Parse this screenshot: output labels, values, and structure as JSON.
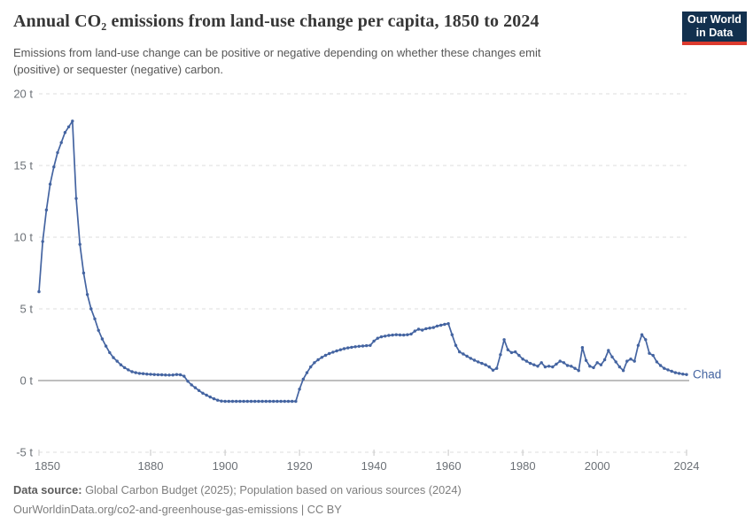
{
  "header": {
    "title": "Annual CO₂ emissions from land-use change per capita, 1850 to 2024",
    "subtitle": {
      "line1": "Emissions from land-use change can be positive or negative depending on whether these changes emit",
      "line2": "(positive) or sequester (negative) carbon."
    },
    "logo": {
      "line1": "Our World",
      "line2": "in Data"
    }
  },
  "footer": {
    "datasource_label": "Data source:",
    "datasource_text": " Global Carbon Budget (2025); Population based on various sources (2024)",
    "url_line": "OurWorldinData.org/co2-and-greenhouse-gas-emissions | CC BY"
  },
  "colors": {
    "line": "#4464a1",
    "title": "#373737",
    "subtitle": "#565656",
    "axis_text": "#6b7076",
    "grid": "#dcdcdc",
    "zero_line": "#a8a8a8",
    "tick": "#c6c6c6",
    "logo_bg": "#12304e",
    "logo_red": "#dc3a2e",
    "footer": "#7e7e7e"
  },
  "chart_data": {
    "type": "line",
    "title": "Annual CO₂ emissions from land-use change per capita, 1850 to 2024",
    "unit": "t",
    "xlim": [
      1850,
      2024
    ],
    "ylim": [
      -5,
      20
    ],
    "grid": "horizontal-dashed",
    "zero_line": true,
    "legend_position": "end-of-line",
    "end_label": "Chad",
    "x_ticks": [
      {
        "value": 1850,
        "label": "1850"
      },
      {
        "value": 1880,
        "label": "1880"
      },
      {
        "value": 1900,
        "label": "1900"
      },
      {
        "value": 1920,
        "label": "1920"
      },
      {
        "value": 1940,
        "label": "1940"
      },
      {
        "value": 1960,
        "label": "1960"
      },
      {
        "value": 1980,
        "label": "1980"
      },
      {
        "value": 2000,
        "label": "2000"
      },
      {
        "value": 2024,
        "label": "2024"
      }
    ],
    "y_ticks": [
      {
        "value": 20,
        "label": "20 t"
      },
      {
        "value": 15,
        "label": "15 t"
      },
      {
        "value": 10,
        "label": "10 t"
      },
      {
        "value": 5,
        "label": "5 t"
      },
      {
        "value": 0,
        "label": "0 t"
      },
      {
        "value": -5,
        "label": "-5 t"
      }
    ],
    "series": [
      {
        "name": "Chad",
        "color": "#4464a1",
        "x": [
          1850,
          1851,
          1852,
          1853,
          1854,
          1855,
          1856,
          1857,
          1858,
          1859,
          1860,
          1861,
          1862,
          1863,
          1864,
          1865,
          1866,
          1867,
          1868,
          1869,
          1870,
          1871,
          1872,
          1873,
          1874,
          1875,
          1876,
          1877,
          1878,
          1879,
          1880,
          1881,
          1882,
          1883,
          1884,
          1885,
          1886,
          1887,
          1888,
          1889,
          1890,
          1891,
          1892,
          1893,
          1894,
          1895,
          1896,
          1897,
          1898,
          1899,
          1900,
          1901,
          1902,
          1903,
          1904,
          1905,
          1906,
          1907,
          1908,
          1909,
          1910,
          1911,
          1912,
          1913,
          1914,
          1915,
          1916,
          1917,
          1918,
          1919,
          1920,
          1921,
          1922,
          1923,
          1924,
          1925,
          1926,
          1927,
          1928,
          1929,
          1930,
          1931,
          1932,
          1933,
          1934,
          1935,
          1936,
          1937,
          1938,
          1939,
          1940,
          1941,
          1942,
          1943,
          1944,
          1945,
          1946,
          1947,
          1948,
          1949,
          1950,
          1951,
          1952,
          1953,
          1954,
          1955,
          1956,
          1957,
          1958,
          1959,
          1960,
          1961,
          1962,
          1963,
          1964,
          1965,
          1966,
          1967,
          1968,
          1969,
          1970,
          1971,
          1972,
          1973,
          1974,
          1975,
          1976,
          1977,
          1978,
          1979,
          1980,
          1981,
          1982,
          1983,
          1984,
          1985,
          1986,
          1987,
          1988,
          1989,
          1990,
          1991,
          1992,
          1993,
          1994,
          1995,
          1996,
          1997,
          1998,
          1999,
          2000,
          2001,
          2002,
          2003,
          2004,
          2005,
          2006,
          2007,
          2008,
          2009,
          2010,
          2011,
          2012,
          2013,
          2014,
          2015,
          2016,
          2017,
          2018,
          2019,
          2020,
          2021,
          2022,
          2023,
          2024
        ],
        "values": [
          6.2,
          9.7,
          11.9,
          13.7,
          14.9,
          15.9,
          16.6,
          17.3,
          17.7,
          18.1,
          12.7,
          9.5,
          7.5,
          6.0,
          5.0,
          4.3,
          3.5,
          2.9,
          2.4,
          1.95,
          1.6,
          1.35,
          1.1,
          0.9,
          0.75,
          0.62,
          0.55,
          0.5,
          0.48,
          0.45,
          0.44,
          0.42,
          0.41,
          0.4,
          0.39,
          0.38,
          0.39,
          0.42,
          0.4,
          0.3,
          -0.05,
          -0.3,
          -0.5,
          -0.7,
          -0.88,
          -1.02,
          -1.15,
          -1.27,
          -1.37,
          -1.43,
          -1.45,
          -1.45,
          -1.45,
          -1.45,
          -1.45,
          -1.45,
          -1.45,
          -1.45,
          -1.45,
          -1.45,
          -1.45,
          -1.45,
          -1.45,
          -1.45,
          -1.45,
          -1.45,
          -1.45,
          -1.45,
          -1.45,
          -1.45,
          -0.6,
          0.1,
          0.55,
          0.95,
          1.25,
          1.45,
          1.62,
          1.76,
          1.88,
          1.98,
          2.07,
          2.15,
          2.22,
          2.28,
          2.32,
          2.36,
          2.39,
          2.41,
          2.43,
          2.45,
          2.75,
          2.95,
          3.05,
          3.1,
          3.15,
          3.17,
          3.2,
          3.18,
          3.17,
          3.2,
          3.25,
          3.45,
          3.58,
          3.52,
          3.62,
          3.66,
          3.7,
          3.8,
          3.86,
          3.92,
          3.97,
          3.2,
          2.45,
          2.0,
          1.85,
          1.7,
          1.55,
          1.42,
          1.3,
          1.2,
          1.1,
          0.95,
          0.72,
          0.85,
          1.8,
          2.85,
          2.15,
          1.95,
          2.0,
          1.75,
          1.5,
          1.35,
          1.2,
          1.1,
          1.0,
          1.25,
          0.95,
          1.0,
          0.95,
          1.15,
          1.35,
          1.25,
          1.05,
          1.0,
          0.85,
          0.7,
          2.3,
          1.4,
          1.0,
          0.9,
          1.25,
          1.1,
          1.45,
          2.1,
          1.65,
          1.3,
          0.95,
          0.7,
          1.35,
          1.5,
          1.35,
          2.45,
          3.2,
          2.85,
          1.9,
          1.75,
          1.3,
          1.05,
          0.85,
          0.75,
          0.65,
          0.55,
          0.5,
          0.45,
          0.42
        ]
      }
    ]
  }
}
